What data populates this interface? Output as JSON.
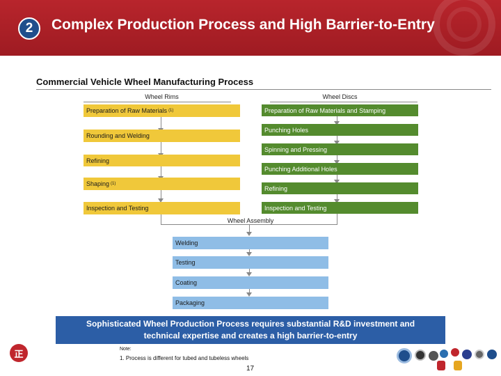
{
  "header": {
    "section_number": "2",
    "title": "Complex Production Process and High Barrier-to-Entry"
  },
  "section_title": "Commercial Vehicle Wheel Manufacturing Process",
  "columns": {
    "rims_heading": "Wheel Rims",
    "discs_heading": "Wheel Discs"
  },
  "rims_steps": [
    {
      "label": "Preparation of Raw Materials",
      "note": "(1)"
    },
    {
      "label": "Rounding and Welding",
      "note": ""
    },
    {
      "label": "Refining",
      "note": ""
    },
    {
      "label": "Shaping",
      "note": "(1)"
    },
    {
      "label": "Inspection and Testing",
      "note": ""
    }
  ],
  "discs_steps": [
    "Preparation of Raw Materials and Stamping",
    "Punching Holes",
    "Spinning and Pressing",
    "Punching Additional Holes",
    "Refining",
    "Inspection and Testing"
  ],
  "assembly": {
    "heading": "Wheel Assembly",
    "steps": [
      "Welding",
      "Testing",
      "Coating",
      "Packaging"
    ]
  },
  "banner": {
    "line1": "Sophisticated Wheel Production Process requires substantial R&D investment and",
    "line2": "technical expertise and creates a high barrier-to-entry"
  },
  "note": {
    "label": "Note:",
    "text": "1. Process is different for tubed and tubeless wheels"
  },
  "page_number": "17",
  "logo_text": "正",
  "colors": {
    "header": "#b8252c",
    "rims": "#f0c83a",
    "discs": "#548b2e",
    "assembly": "#8fbde6",
    "banner": "#2c5ea6"
  }
}
